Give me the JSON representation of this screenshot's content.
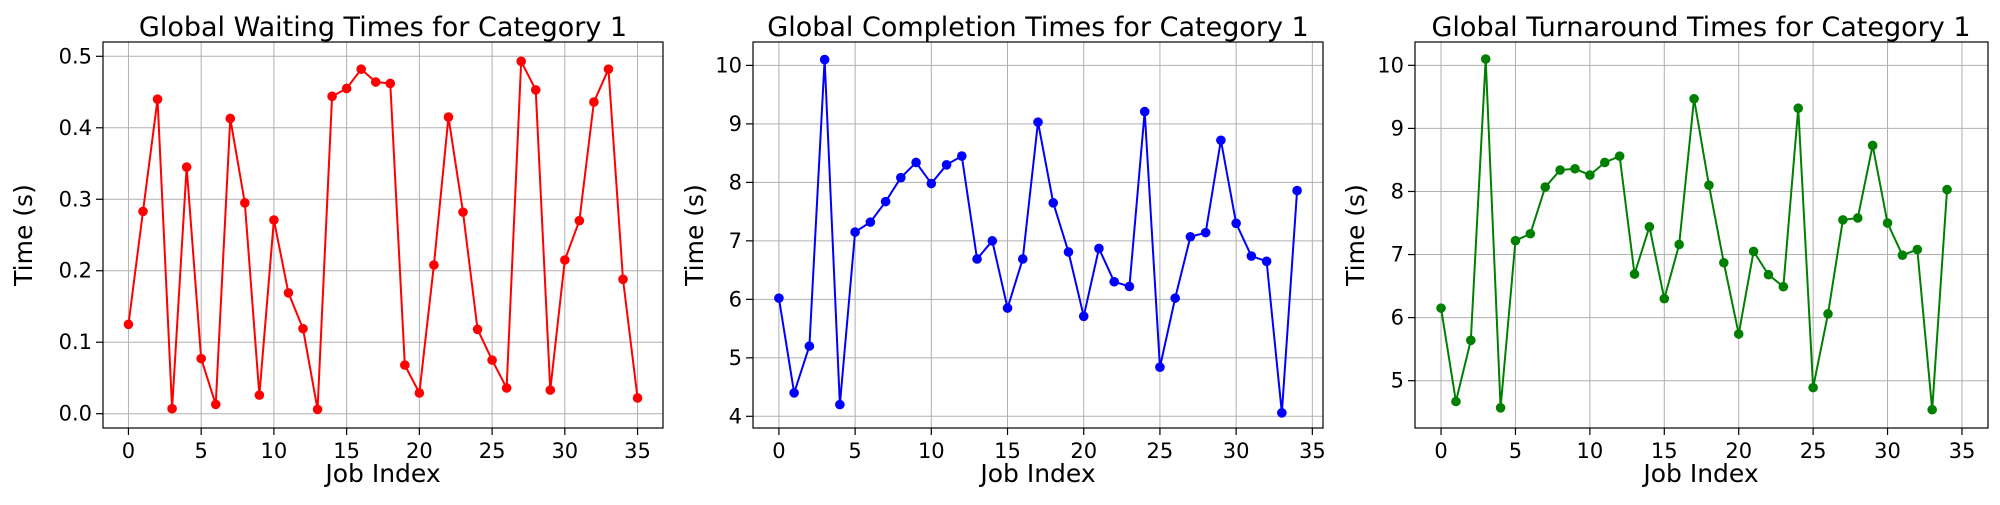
{
  "chart_data": [
    {
      "type": "line",
      "title": "Global Waiting Times for Category 1",
      "xlabel": "Job Index",
      "ylabel": "Time (s)",
      "color": "#ff0000",
      "marker": "circle",
      "grid": true,
      "xlim": [
        -1.75,
        36.75
      ],
      "ylim": [
        -0.02,
        0.52
      ],
      "xticks": [
        0,
        5,
        10,
        15,
        20,
        25,
        30,
        35
      ],
      "xtick_labels": [
        "0",
        "5",
        "10",
        "15",
        "20",
        "25",
        "30",
        "35"
      ],
      "yticks": [
        0.0,
        0.1,
        0.2,
        0.3,
        0.4,
        0.5
      ],
      "ytick_labels": [
        "0.0",
        "0.1",
        "0.2",
        "0.3",
        "0.4",
        "0.5"
      ],
      "x": [
        0,
        1,
        2,
        3,
        4,
        5,
        6,
        7,
        8,
        9,
        10,
        11,
        12,
        13,
        14,
        15,
        16,
        17,
        18,
        19,
        20,
        21,
        22,
        23,
        24,
        25,
        26,
        27,
        28,
        29,
        30,
        31,
        32,
        33,
        34,
        35
      ],
      "values": [
        0.125,
        0.283,
        0.44,
        0.007,
        0.345,
        0.077,
        0.013,
        0.413,
        0.295,
        0.026,
        0.271,
        0.169,
        0.119,
        0.006,
        0.444,
        0.455,
        0.482,
        0.464,
        0.462,
        0.068,
        0.029,
        0.208,
        0.415,
        0.282,
        0.118,
        0.075,
        0.036,
        0.493,
        0.453,
        0.033,
        0.215,
        0.27,
        0.436,
        0.482,
        0.188,
        0.022
      ]
    },
    {
      "type": "line",
      "title": "Global Completion Times for Category 1",
      "xlabel": "Job Index",
      "ylabel": "Time (s)",
      "color": "#0000ff",
      "marker": "circle",
      "grid": true,
      "xlim": [
        -1.7,
        35.7
      ],
      "ylim": [
        3.8,
        10.4
      ],
      "xticks": [
        0,
        5,
        10,
        15,
        20,
        25,
        30,
        35
      ],
      "xtick_labels": [
        "0",
        "5",
        "10",
        "15",
        "20",
        "25",
        "30",
        "35"
      ],
      "yticks": [
        4,
        5,
        6,
        7,
        8,
        9,
        10
      ],
      "ytick_labels": [
        "4",
        "5",
        "6",
        "7",
        "8",
        "9",
        "10"
      ],
      "x": [
        0,
        1,
        2,
        3,
        4,
        5,
        6,
        7,
        8,
        9,
        10,
        11,
        12,
        13,
        14,
        15,
        16,
        17,
        18,
        19,
        20,
        21,
        22,
        23,
        24,
        25,
        26,
        27,
        28,
        29,
        30,
        31,
        32,
        33,
        34
      ],
      "values": [
        6.02,
        4.4,
        5.2,
        10.1,
        4.2,
        7.15,
        7.32,
        7.67,
        8.08,
        8.34,
        7.98,
        8.3,
        8.45,
        6.69,
        7.0,
        5.85,
        6.69,
        9.03,
        7.65,
        6.81,
        5.71,
        6.87,
        6.3,
        6.22,
        9.21,
        4.84,
        6.02,
        7.07,
        7.14,
        8.72,
        7.3,
        6.74,
        6.65,
        4.06,
        7.86
      ]
    },
    {
      "type": "line",
      "title": "Global Turnaround Times for Category 1",
      "xlabel": "Job Index",
      "ylabel": "Time (s)",
      "color": "#008000",
      "marker": "circle",
      "grid": true,
      "xlim": [
        -1.75,
        36.75
      ],
      "ylim": [
        4.25,
        10.37
      ],
      "xticks": [
        0,
        5,
        10,
        15,
        20,
        25,
        30,
        35
      ],
      "xtick_labels": [
        "0",
        "5",
        "10",
        "15",
        "20",
        "25",
        "30",
        "35"
      ],
      "yticks": [
        5,
        6,
        7,
        8,
        9,
        10
      ],
      "ytick_labels": [
        "5",
        "6",
        "7",
        "8",
        "9",
        "10"
      ],
      "x": [
        0,
        1,
        2,
        3,
        4,
        5,
        6,
        7,
        8,
        9,
        10,
        11,
        12,
        13,
        14,
        15,
        16,
        17,
        18,
        19,
        20,
        21,
        22,
        23,
        24,
        25,
        26,
        27,
        28,
        29,
        30,
        31,
        32,
        33,
        34
      ],
      "values": [
        6.15,
        4.67,
        5.64,
        10.1,
        4.57,
        7.22,
        7.33,
        8.07,
        8.34,
        8.36,
        8.26,
        8.46,
        8.56,
        6.69,
        7.44,
        6.3,
        7.16,
        9.47,
        8.1,
        6.87,
        5.74,
        7.05,
        6.68,
        6.49,
        9.32,
        4.89,
        6.06,
        7.55,
        7.58,
        8.73,
        7.5,
        6.99,
        7.08,
        4.54,
        8.03
      ]
    }
  ]
}
